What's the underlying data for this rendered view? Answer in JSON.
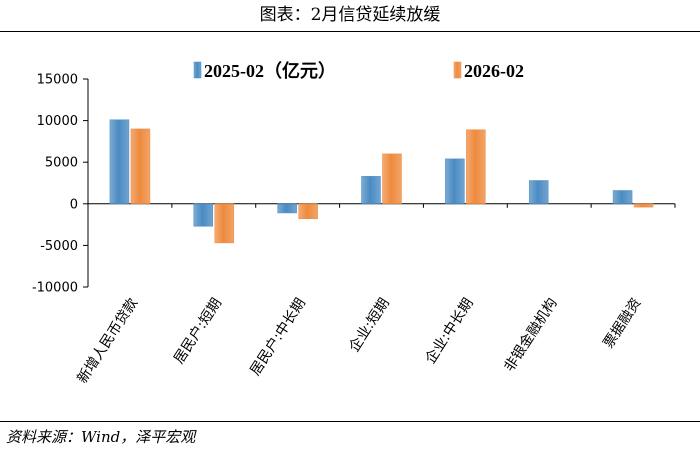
{
  "title": "图表：2月信贷延续放缓",
  "source": "资料来源：Wind，泽平宏观",
  "chart_data": {
    "type": "bar",
    "categories": [
      "新增人民币贷款",
      "居民户:短期",
      "居民户:中长期",
      "企业:短期",
      "企业:中长期",
      "非银金融机构",
      "票据融资"
    ],
    "series": [
      {
        "name": "2025-02（亿元）",
        "color": "#4a8bc2",
        "values": [
          10100,
          -2700,
          -1100,
          3300,
          5400,
          2800,
          1600
        ]
      },
      {
        "name": "2026-02",
        "color": "#ee8a3e",
        "values": [
          9000,
          -4700,
          -1800,
          6000,
          8900,
          0,
          -400
        ]
      }
    ],
    "ylim": [
      -10000,
      15000
    ],
    "yticks": [
      15000,
      10000,
      5000,
      0,
      -5000,
      -10000
    ],
    "legend_position": "top"
  }
}
